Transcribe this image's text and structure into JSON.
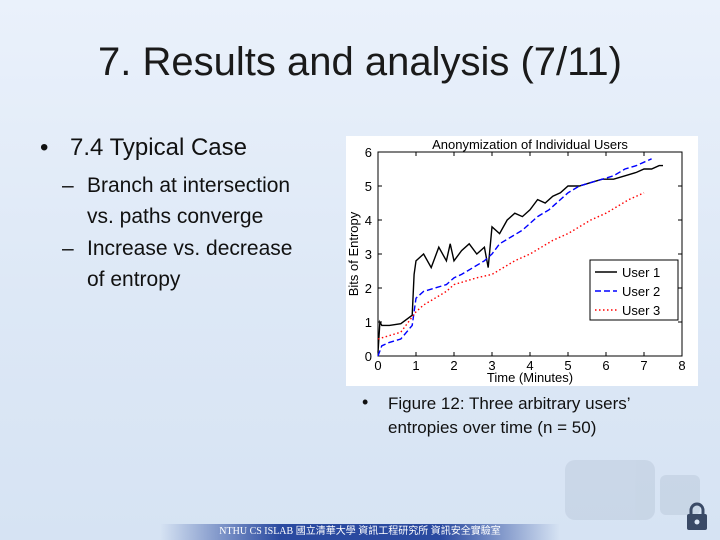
{
  "slide": {
    "title": "7. Results and analysis (7/11)",
    "bullet_marker": "•",
    "bullet_text": "7.4  Typical Case",
    "sub_marker": "–",
    "sub_items": [
      {
        "line1": "Branch at intersection",
        "line2": "vs. paths converge"
      },
      {
        "line1": "Increase vs. decrease",
        "line2": "of entropy"
      }
    ],
    "caption_marker": "•",
    "caption_line1": "Figure 12:  Three arbitrary users’",
    "caption_line2": "entropies over time (n = 50)",
    "footer": "NTHU CS ISLAB 國立清華大學 資訊工程研究所 資訊安全實驗室"
  },
  "chart_data": {
    "type": "line",
    "title": "Anonymization of Individual Users",
    "xlabel": "Time (Minutes)",
    "ylabel": "Bits of Entropy",
    "xlim": [
      0,
      8
    ],
    "ylim": [
      0,
      6
    ],
    "xticks": [
      0,
      1,
      2,
      3,
      4,
      5,
      6,
      7,
      8
    ],
    "yticks": [
      0,
      1,
      2,
      3,
      4,
      5,
      6
    ],
    "legend_position": "lower-right",
    "grid": false,
    "series": [
      {
        "name": "User 1",
        "style": "solid",
        "color": "#000000",
        "x": [
          0,
          0.05,
          0.1,
          0.3,
          0.6,
          0.9,
          0.95,
          1.0,
          1.2,
          1.4,
          1.6,
          1.8,
          1.9,
          2.0,
          2.2,
          2.4,
          2.6,
          2.8,
          2.9,
          3.0,
          3.2,
          3.4,
          3.6,
          3.8,
          4.0,
          4.2,
          4.4,
          4.6,
          4.8,
          5.0,
          5.3,
          5.6,
          5.9,
          6.2,
          6.5,
          6.8,
          7.0,
          7.2,
          7.4,
          7.5
        ],
        "y": [
          0.1,
          1.0,
          0.9,
          0.9,
          0.95,
          1.2,
          2.4,
          2.8,
          3.0,
          2.6,
          3.2,
          2.8,
          3.3,
          2.8,
          3.1,
          3.3,
          3.0,
          3.2,
          2.6,
          3.8,
          3.6,
          4.0,
          4.2,
          4.1,
          4.3,
          4.6,
          4.5,
          4.7,
          4.8,
          5.0,
          5.0,
          5.1,
          5.2,
          5.2,
          5.3,
          5.4,
          5.5,
          5.5,
          5.6,
          5.6
        ]
      },
      {
        "name": "User 2",
        "style": "dashed",
        "color": "#0000ff",
        "x": [
          0,
          0.1,
          0.3,
          0.6,
          0.9,
          1.0,
          1.2,
          1.5,
          1.8,
          2.0,
          2.2,
          2.5,
          2.8,
          3.0,
          3.2,
          3.5,
          3.8,
          4.0,
          4.2,
          4.5,
          4.8,
          5.0,
          5.3,
          5.6,
          5.9,
          6.2,
          6.5,
          6.8,
          7.0,
          7.2
        ],
        "y": [
          0.0,
          0.3,
          0.4,
          0.5,
          0.9,
          1.7,
          1.9,
          2.0,
          2.1,
          2.3,
          2.4,
          2.6,
          2.8,
          3.0,
          3.3,
          3.5,
          3.7,
          3.9,
          4.1,
          4.3,
          4.6,
          4.8,
          5.0,
          5.1,
          5.2,
          5.3,
          5.5,
          5.6,
          5.7,
          5.8
        ]
      },
      {
        "name": "User 3",
        "style": "dotted",
        "color": "#ff0000",
        "x": [
          0,
          0.3,
          0.6,
          1.0,
          1.2,
          1.5,
          1.8,
          2.0,
          2.3,
          2.6,
          3.0,
          3.3,
          3.6,
          4.0,
          4.3,
          4.6,
          5.0,
          5.3,
          5.6,
          6.0,
          6.3,
          6.6,
          7.0
        ],
        "y": [
          0.5,
          0.6,
          0.7,
          1.3,
          1.5,
          1.7,
          1.9,
          2.1,
          2.2,
          2.3,
          2.4,
          2.6,
          2.8,
          3.0,
          3.2,
          3.4,
          3.6,
          3.8,
          4.0,
          4.2,
          4.4,
          4.6,
          4.8
        ]
      }
    ]
  }
}
